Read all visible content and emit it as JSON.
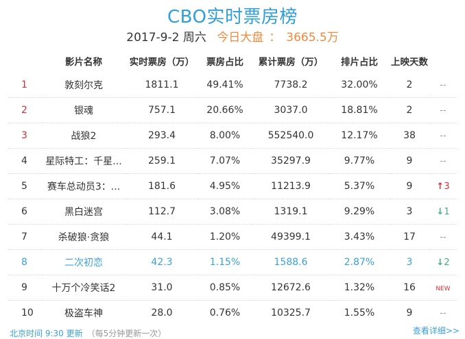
{
  "header": {
    "title": "CBO实时票房榜",
    "date": "2017-9-2 周六",
    "total_label": "今日大盘",
    "total_sep": "：",
    "total_value": "3665.5万"
  },
  "table": {
    "columns": [
      "影片名称",
      "实时票房（万）",
      "票房占比",
      "累计票房（万）",
      "排片占比",
      "上映天数",
      ""
    ],
    "rows": [
      {
        "rank": "1",
        "name": "敦刻尔克",
        "realtime": "1811.1",
        "share": "49.41%",
        "cumulative": "7738.2",
        "schedule": "32.00%",
        "days": "2",
        "trend": "--",
        "trend_type": "none"
      },
      {
        "rank": "2",
        "name": "银魂",
        "realtime": "757.1",
        "share": "20.66%",
        "cumulative": "3037.0",
        "schedule": "18.81%",
        "days": "2",
        "trend": "--",
        "trend_type": "none"
      },
      {
        "rank": "3",
        "name": "战狼2",
        "realtime": "293.4",
        "share": "8.00%",
        "cumulative": "552540.0",
        "schedule": "12.17%",
        "days": "38",
        "trend": "--",
        "trend_type": "none"
      },
      {
        "rank": "4",
        "name": "星际特工：千星...",
        "realtime": "259.1",
        "share": "7.07%",
        "cumulative": "35297.9",
        "schedule": "9.77%",
        "days": "9",
        "trend": "--",
        "trend_type": "none"
      },
      {
        "rank": "5",
        "name": "赛车总动员3：...",
        "realtime": "181.6",
        "share": "4.95%",
        "cumulative": "11213.9",
        "schedule": "5.37%",
        "days": "9",
        "trend": "3",
        "trend_type": "up"
      },
      {
        "rank": "6",
        "name": "黑白迷宫",
        "realtime": "112.7",
        "share": "3.08%",
        "cumulative": "1319.1",
        "schedule": "9.29%",
        "days": "3",
        "trend": "1",
        "trend_type": "down"
      },
      {
        "rank": "7",
        "name": "杀破狼·贪狼",
        "realtime": "44.1",
        "share": "1.20%",
        "cumulative": "49399.1",
        "schedule": "3.43%",
        "days": "17",
        "trend": "--",
        "trend_type": "none"
      },
      {
        "rank": "8",
        "name": "二次初恋",
        "realtime": "42.3",
        "share": "1.15%",
        "cumulative": "1588.6",
        "schedule": "2.87%",
        "days": "3",
        "trend": "2",
        "trend_type": "down",
        "highlight": true
      },
      {
        "rank": "9",
        "name": "十万个冷笑话2",
        "realtime": "31.0",
        "share": "0.85%",
        "cumulative": "12672.6",
        "schedule": "1.32%",
        "days": "16",
        "trend": "NEW",
        "trend_type": "new"
      },
      {
        "rank": "10",
        "name": "极盗车神",
        "realtime": "28.0",
        "share": "0.76%",
        "cumulative": "10325.7",
        "schedule": "1.55%",
        "days": "9",
        "trend": "--",
        "trend_type": "none"
      }
    ]
  },
  "footer": {
    "update_text": "北京时间 9:30 更新",
    "note": "（每5分钟更新一次）",
    "details_link": "查看详细>>"
  },
  "colors": {
    "accent_blue": "#2e9fd8",
    "total_orange": "#f08a3c",
    "top_rank_red": "#d0303a",
    "up_red": "#e0303a",
    "down_green": "#3fb07a"
  }
}
